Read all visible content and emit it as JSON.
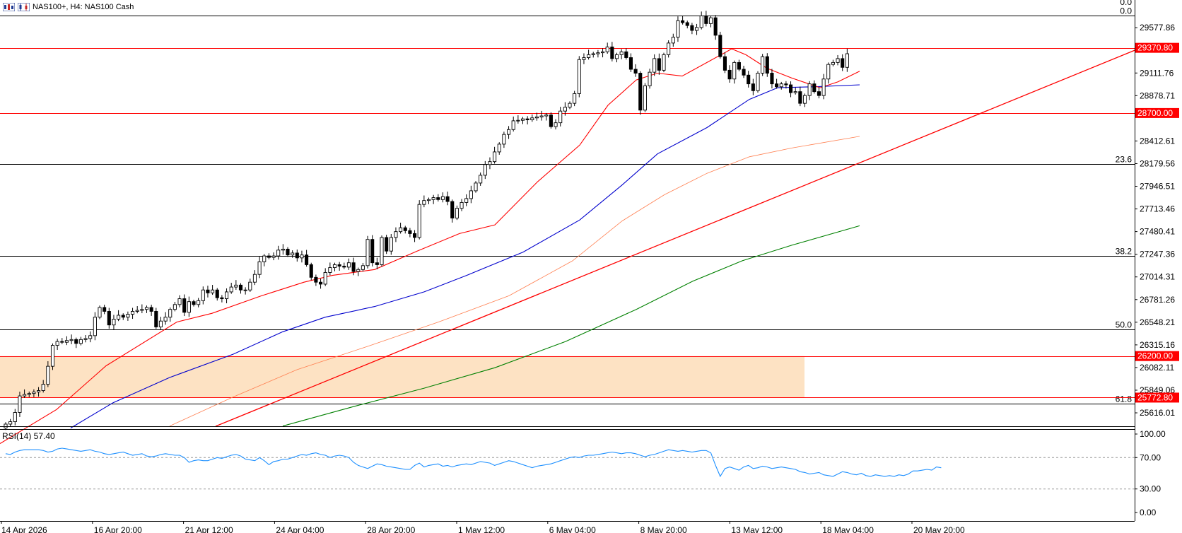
{
  "header": {
    "title": "NAS100+, H4:  NAS100 Cash",
    "icon_names": [
      "chart-bars-icon",
      "candles-icon"
    ]
  },
  "colors": {
    "support_resistance": "#ff0000",
    "zone_fill": "#fde2c3",
    "ma_fast": "#ff0000",
    "ma_mid": "#0000cd",
    "ma_slow": "#ff7f50",
    "ma_long": "#008000",
    "trendline": "#ff0000",
    "rsi_line": "#1e90ff",
    "fib_line": "#000000",
    "price_tag_bg": "#ff0000",
    "price_tag_text": "#ffffff"
  },
  "chart_data": [
    {
      "type": "candlestick",
      "symbol": "NAS100+",
      "timeframe": "H4",
      "x_ticks": [
        "14 Apr 2026",
        "16 Apr 20:00",
        "21 Apr 12:00",
        "24 Apr 04:00",
        "28 Apr 20:00",
        "1 May 12:00",
        "6 May 04:00",
        "8 May 20:00",
        "13 May 12:00",
        "18 May 04:00",
        "20 May 20:00"
      ],
      "y_ticks": [
        29577.86,
        29111.76,
        28878.71,
        28412.61,
        28179.56,
        27946.51,
        27713.46,
        27480.41,
        27247.36,
        27014.31,
        26781.26,
        26548.21,
        26315.16,
        26082.11,
        25849.06,
        25616.01
      ],
      "y_range": [
        25478,
        29790
      ],
      "horizontal_levels": [
        {
          "price": 29370.8,
          "label": "29370.80"
        },
        {
          "price": 28700.0,
          "label": "28700.00"
        },
        {
          "price": 26200.0,
          "label": "26200.00"
        },
        {
          "price": 25772.8,
          "label": "25772.80"
        }
      ],
      "fibonacci": [
        {
          "level": "0.0",
          "price": 29700
        },
        {
          "level": "23.6",
          "price": 28176
        },
        {
          "level": "38.2",
          "price": 27233
        },
        {
          "level": "50.0",
          "price": 26472
        },
        {
          "level": "61.8",
          "price": 25710
        }
      ],
      "zone": {
        "from": 25772.8,
        "to": 26200.0
      },
      "closes": [
        25500,
        25525,
        25620,
        25790,
        25805,
        25815,
        25830,
        25845,
        25910,
        26095,
        26310,
        26350,
        26342,
        26360,
        26370,
        26330,
        26370,
        26380,
        26410,
        26600,
        26700,
        26660,
        26520,
        26580,
        26620,
        26600,
        26630,
        26660,
        26670,
        26680,
        26700,
        26660,
        26500,
        26560,
        26600,
        26680,
        26730,
        26790,
        26650,
        26760,
        26730,
        26770,
        26880,
        26850,
        26880,
        26800,
        26790,
        26860,
        26910,
        26930,
        26880,
        26880,
        26960,
        27040,
        27170,
        27230,
        27215,
        27230,
        27290,
        27300,
        27240,
        27260,
        27210,
        27240,
        27140,
        27010,
        26960,
        26940,
        27060,
        27110,
        27140,
        27125,
        27115,
        27160,
        27070,
        27090,
        27130,
        27400,
        27160,
        27140,
        27420,
        27280,
        27420,
        27480,
        27520,
        27490,
        27460,
        27420,
        27760,
        27800,
        27810,
        27830,
        27810,
        27840,
        27790,
        27620,
        27720,
        27780,
        27820,
        27900,
        27980,
        28060,
        28170,
        28200,
        28300,
        28380,
        28480,
        28530,
        28620,
        28625,
        28640,
        28630,
        28650,
        28660,
        28670,
        28680,
        28560,
        28600,
        28720,
        28760,
        28800,
        28900,
        29250,
        29270,
        29300,
        29310,
        29320,
        29330,
        29380,
        29260,
        29300,
        29330,
        29270,
        29150,
        29110,
        28730,
        28980,
        29120,
        29260,
        29140,
        29300,
        29420,
        29480,
        29650,
        29630,
        29600,
        29550,
        29580,
        29700,
        29620,
        29680,
        29500,
        29280,
        29140,
        29050,
        29220,
        29150,
        29090,
        29000,
        28930,
        29110,
        29280,
        29110,
        29000,
        28970,
        29000,
        28990,
        28910,
        28920,
        28800,
        28880,
        29000,
        28920,
        28880,
        29050,
        29200,
        29220,
        29260,
        29170,
        29310
      ],
      "ma_fast": [
        [
          0,
          25300
        ],
        [
          80,
          25650
        ],
        [
          150,
          26100
        ],
        [
          250,
          26550
        ],
        [
          300,
          26640
        ],
        [
          370,
          26820
        ],
        [
          430,
          26960
        ],
        [
          470,
          27030
        ],
        [
          530,
          27090
        ],
        [
          590,
          27280
        ],
        [
          650,
          27460
        ],
        [
          700,
          27550
        ],
        [
          760,
          27990
        ],
        [
          820,
          28370
        ],
        [
          860,
          28780
        ],
        [
          900,
          29040
        ],
        [
          930,
          29110
        ],
        [
          965,
          29080
        ],
        [
          1000,
          29220
        ],
        [
          1035,
          29360
        ],
        [
          1055,
          29300
        ],
        [
          1085,
          29160
        ],
        [
          1120,
          29060
        ],
        [
          1160,
          28960
        ],
        [
          1185,
          29020
        ],
        [
          1216,
          29130
        ]
      ],
      "ma_mid": [
        [
          100,
          25460
        ],
        [
          160,
          25720
        ],
        [
          240,
          25980
        ],
        [
          330,
          26220
        ],
        [
          400,
          26450
        ],
        [
          460,
          26600
        ],
        [
          530,
          26710
        ],
        [
          600,
          26860
        ],
        [
          660,
          27030
        ],
        [
          740,
          27270
        ],
        [
          820,
          27600
        ],
        [
          880,
          27960
        ],
        [
          930,
          28280
        ],
        [
          1000,
          28550
        ],
        [
          1060,
          28840
        ],
        [
          1100,
          28960
        ],
        [
          1150,
          28970
        ],
        [
          1216,
          28990
        ]
      ],
      "ma_slow": [
        [
          240,
          25480
        ],
        [
          330,
          25780
        ],
        [
          420,
          26060
        ],
        [
          520,
          26300
        ],
        [
          620,
          26550
        ],
        [
          720,
          26820
        ],
        [
          810,
          27180
        ],
        [
          880,
          27590
        ],
        [
          940,
          27860
        ],
        [
          1000,
          28080
        ],
        [
          1060,
          28250
        ],
        [
          1120,
          28340
        ],
        [
          1216,
          28460
        ]
      ],
      "ma_long": [
        [
          400,
          25480
        ],
        [
          500,
          25680
        ],
        [
          600,
          25870
        ],
        [
          700,
          26080
        ],
        [
          800,
          26350
        ],
        [
          900,
          26680
        ],
        [
          980,
          26970
        ],
        [
          1050,
          27180
        ],
        [
          1120,
          27340
        ],
        [
          1216,
          27540
        ]
      ],
      "trendline": [
        [
          305,
          25478
        ],
        [
          1610,
          29360
        ]
      ]
    },
    {
      "type": "line",
      "indicator": "RSI(14)",
      "label": "RSI(14) 57.40",
      "current_value": 57.4,
      "y_ticks": [
        100.0,
        70.0,
        30.0,
        0.0
      ],
      "y_range": [
        0,
        100
      ],
      "levels": [
        70,
        30
      ],
      "values": [
        75,
        74,
        77,
        79,
        80,
        80,
        80,
        80,
        79,
        77,
        78,
        81,
        82,
        81,
        80,
        79,
        78,
        79,
        80,
        78,
        77,
        75,
        74,
        75,
        76,
        77,
        75,
        73,
        74,
        75,
        72,
        71,
        72,
        74,
        75,
        74,
        73,
        73,
        70,
        64,
        66,
        67,
        66,
        66,
        68,
        70,
        69,
        71,
        73,
        74,
        72,
        68,
        67,
        66,
        70,
        66,
        61,
        65,
        66,
        68,
        68,
        70,
        72,
        74,
        73,
        75,
        76,
        74,
        73,
        70,
        72,
        73,
        72,
        70,
        64,
        60,
        58,
        56,
        59,
        62,
        61,
        59,
        58,
        57,
        56,
        55,
        55,
        60,
        63,
        58,
        60,
        61,
        62,
        59,
        60,
        58,
        60,
        61,
        62,
        61,
        63,
        65,
        64,
        63,
        60,
        62,
        64,
        66,
        65,
        63,
        61,
        59,
        57,
        59,
        60,
        61,
        62,
        64,
        66,
        68,
        70,
        71,
        70,
        72,
        73,
        73,
        74,
        75,
        76,
        77,
        76,
        75,
        76,
        76,
        75,
        73,
        71,
        73,
        74,
        76,
        78,
        80,
        79,
        78,
        79,
        78,
        77,
        78,
        79,
        79,
        76,
        60,
        46,
        56,
        58,
        56,
        54,
        58,
        60,
        56,
        57,
        59,
        58,
        56,
        57,
        58,
        57,
        56,
        55,
        52,
        51,
        49,
        50,
        51,
        48,
        47,
        46,
        49,
        52,
        51,
        49,
        48,
        50,
        47,
        46,
        48,
        47,
        46,
        47,
        46,
        48,
        47,
        49,
        53,
        53,
        54,
        55,
        54,
        58,
        57
      ]
    }
  ]
}
